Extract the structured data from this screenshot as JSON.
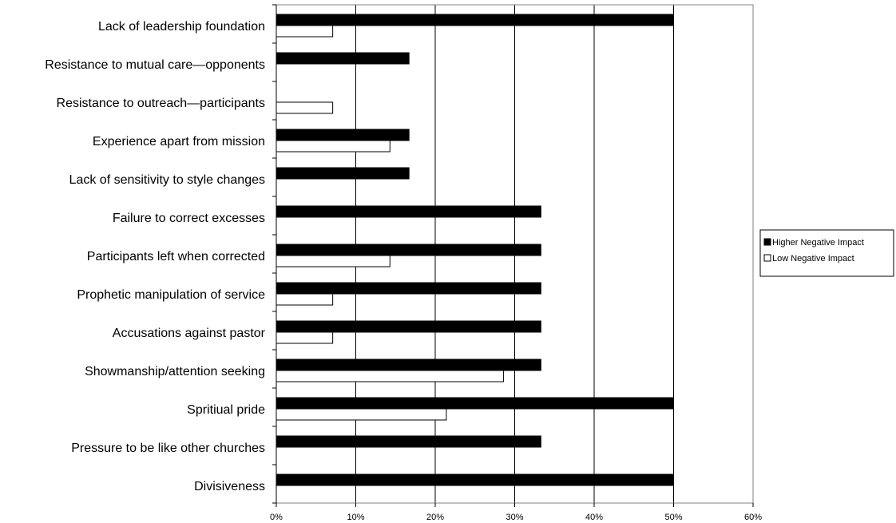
{
  "chart_data": {
    "type": "bar",
    "orientation": "horizontal",
    "categories": [
      "Lack of leadership foundation",
      "Resistance to mutual care—opponents",
      "Resistance to outreach—participants",
      "Experience apart from mission",
      "Lack of sensitivity to style changes",
      "Failure to correct excesses",
      "Participants left when corrected",
      "Prophetic manipulation of service",
      "Accusations against pastor",
      "Showmanship/attention seeking",
      "Spritiual pride",
      "Pressure to be like other churches",
      "Divisiveness"
    ],
    "series": [
      {
        "name": "Higher Negative Impact",
        "color": "#000000",
        "values": [
          50,
          16.7,
          0,
          16.7,
          16.7,
          33.3,
          33.3,
          33.3,
          33.3,
          33.3,
          50,
          33.3,
          50
        ]
      },
      {
        "name": "Low Negative Impact",
        "color": "#ffffff",
        "values": [
          7.1,
          0,
          7.1,
          14.3,
          0,
          0,
          14.3,
          7.1,
          7.1,
          28.6,
          21.4,
          0,
          0
        ]
      }
    ],
    "xlim": [
      0,
      60
    ],
    "xticks": [
      "0%",
      "10%",
      "20%",
      "30%",
      "40%",
      "50%",
      "60%"
    ],
    "xtick_values": [
      0,
      10,
      20,
      30,
      40,
      50,
      60
    ],
    "grid": "vertical",
    "legend": "right",
    "title": "",
    "xlabel": "",
    "ylabel": ""
  }
}
